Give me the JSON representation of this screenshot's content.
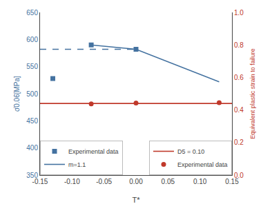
{
  "chart_data": {
    "type": "line",
    "xlabel": "T*",
    "ylabel": "σ̄0.06[MPa]",
    "y2label": "Equivalent plastic strain to failure",
    "xlim": [
      -0.15,
      0.15
    ],
    "xticks": [
      -0.15,
      {
        "value": -0.1,
        "label": "-0.10"
      },
      -0.05,
      {
        "value": 0,
        "label": "0.00"
      },
      0.05,
      {
        "value": 0.1,
        "label": "0.10"
      },
      0.15
    ],
    "ylim": [
      350,
      650
    ],
    "yticks": [
      350,
      400,
      450,
      500,
      550,
      600,
      650
    ],
    "y2lim": [
      0,
      1
    ],
    "y2ticks": [
      {
        "value": 0,
        "label": "0.0"
      },
      0.2,
      0.4,
      0.6,
      0.8,
      {
        "value": 1,
        "label": "1.0"
      }
    ],
    "grid": false,
    "legend": "lower left",
    "series": [
      {
        "type": "line",
        "line_style": "dashed",
        "color": "#4472a0",
        "x": [
          -0.15,
          0.0
        ],
        "values": [
          582,
          582
        ]
      },
      {
        "name": "Experimental data",
        "type": "scatter",
        "marker": "square",
        "color": "#4472a0",
        "x": [
          -0.13,
          -0.07,
          0.0
        ],
        "values": [
          528,
          590,
          582
        ]
      },
      {
        "name": "m=1.1",
        "type": "line",
        "line_style": "solid",
        "color": "#4472a0",
        "x": [
          -0.07,
          0.0,
          0.13
        ],
        "values": [
          590,
          582,
          522
        ]
      },
      {
        "name": "D5 = 0.10",
        "type": "line",
        "line_style": "solid",
        "color": "#c0392b",
        "axis": "y2",
        "x": [
          -0.15,
          0.15
        ],
        "values": [
          0.44,
          0.44
        ]
      },
      {
        "name": "Experimental data",
        "type": "scatter",
        "marker": "circle",
        "color": "#c0392b",
        "axis": "y2",
        "x": [
          -0.07,
          0.0,
          0.13
        ],
        "values": [
          0.437,
          0.443,
          0.445
        ]
      }
    ]
  }
}
